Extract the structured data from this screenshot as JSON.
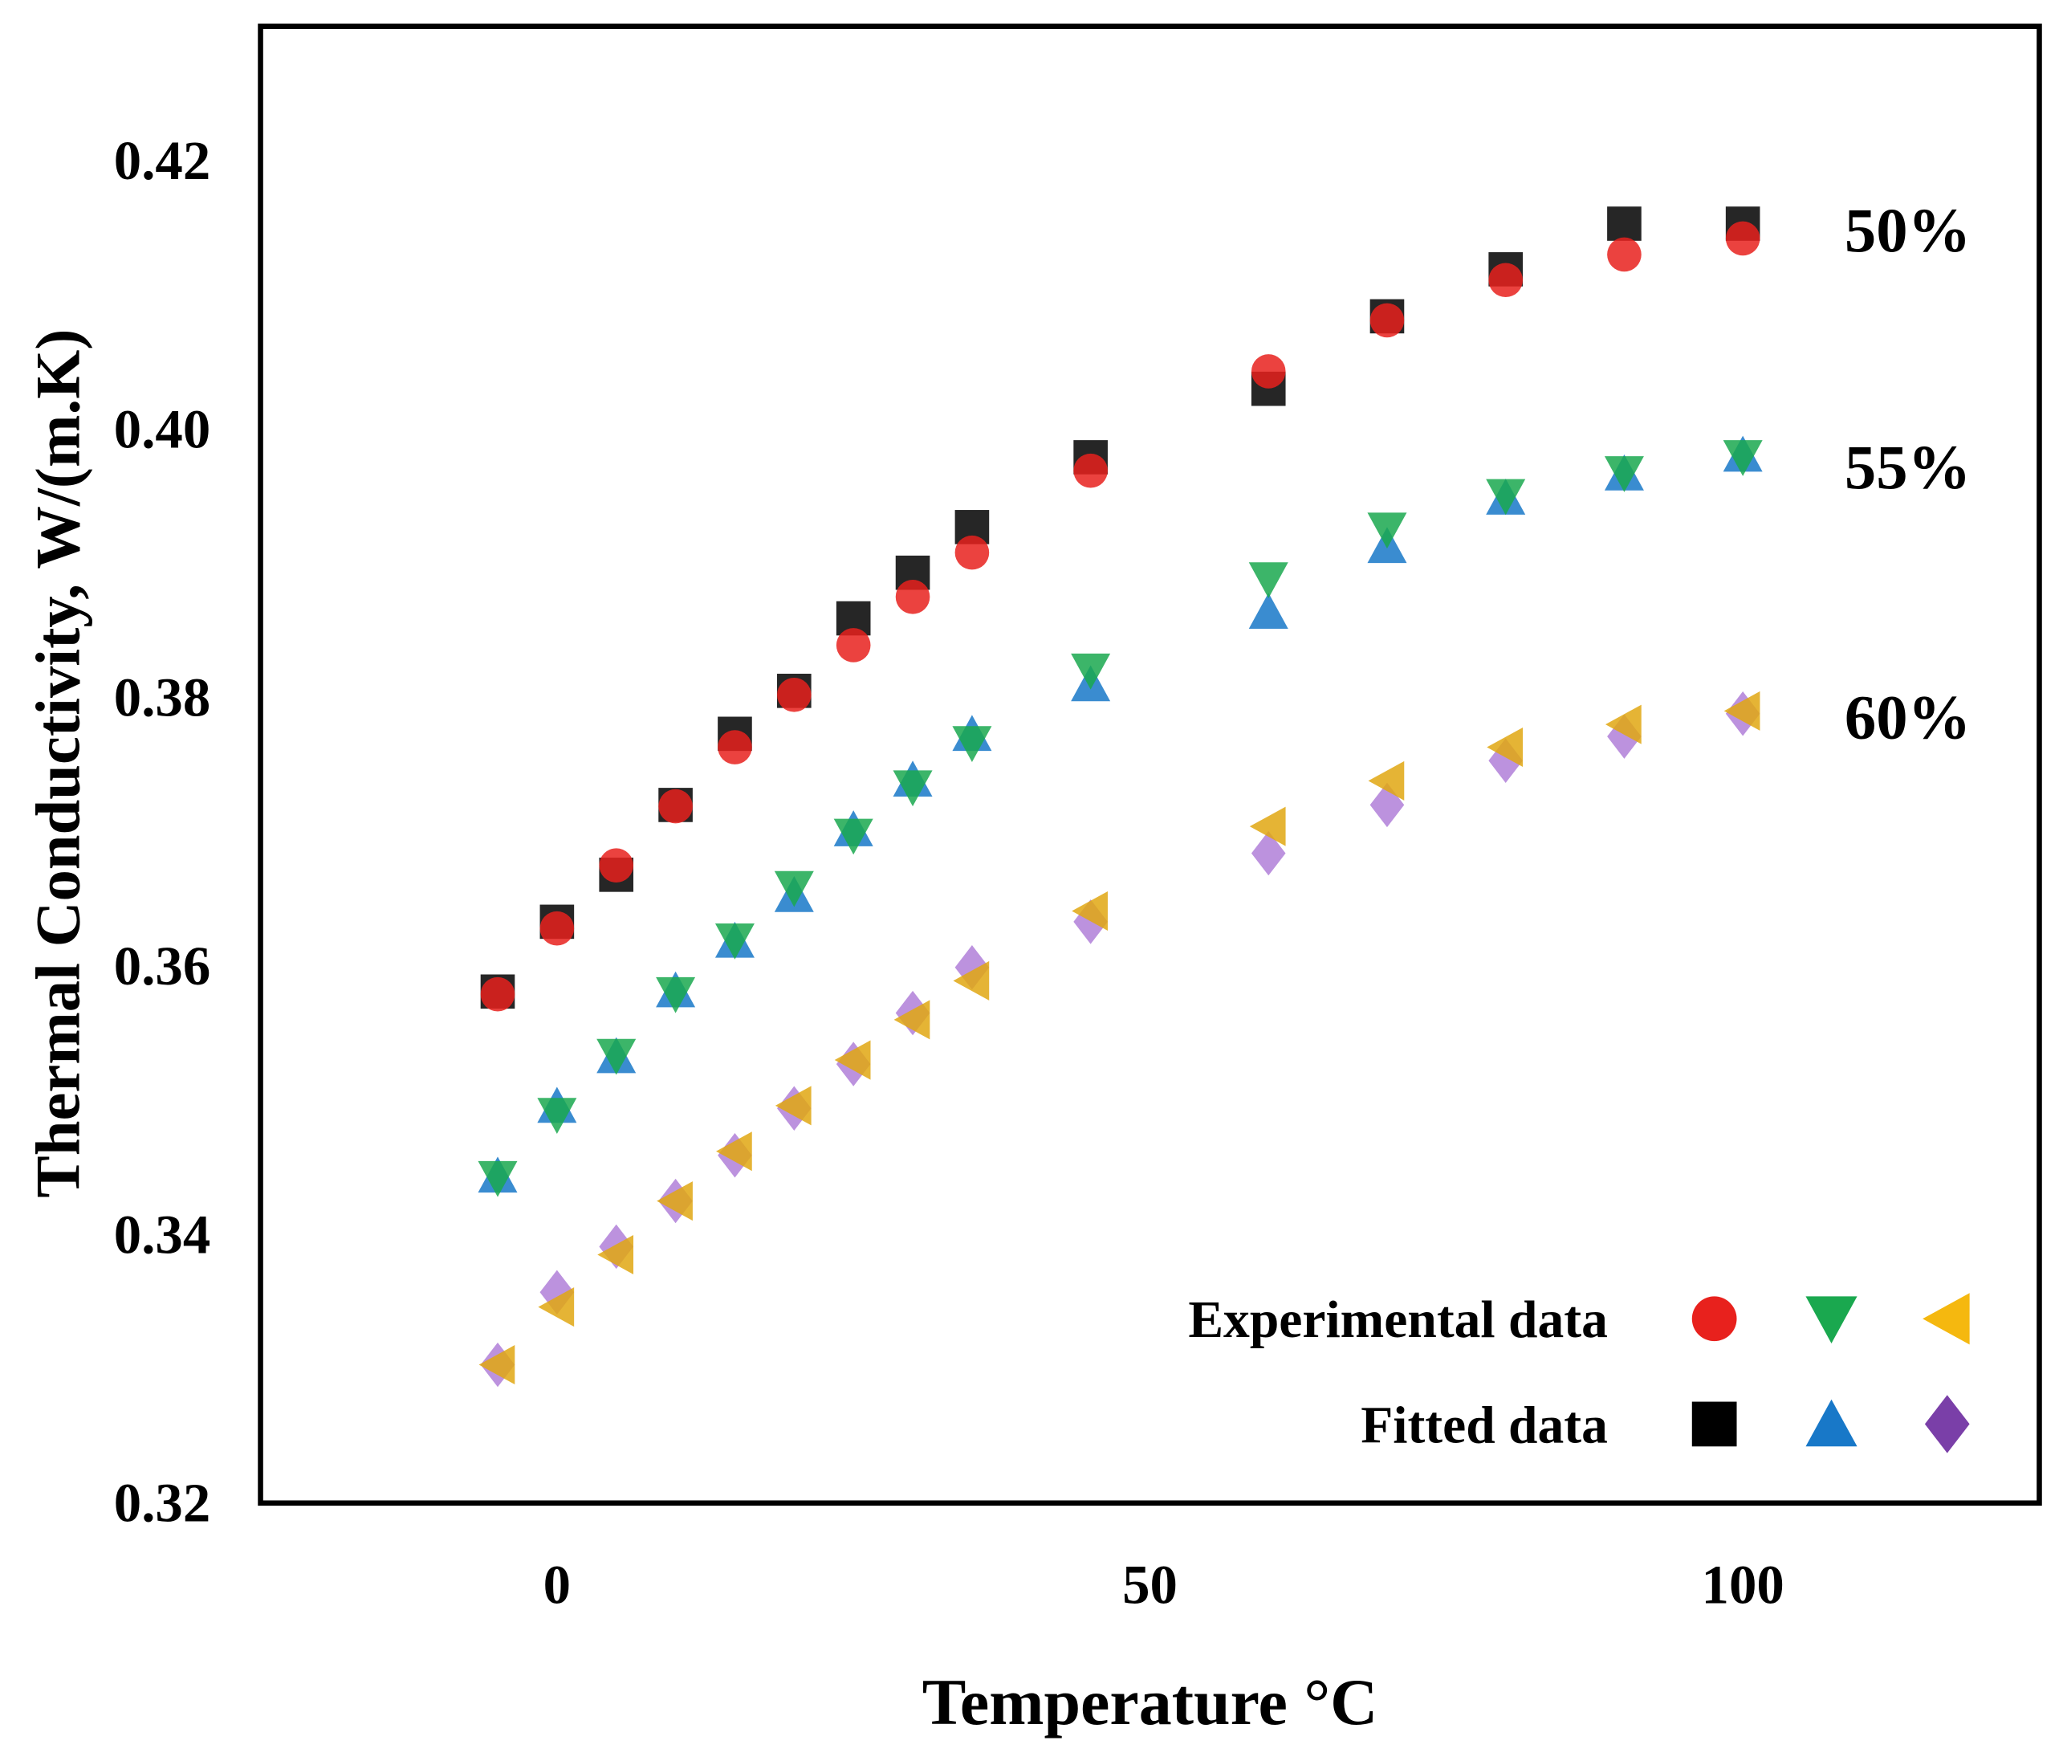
{
  "chart_data": {
    "type": "scatter",
    "title": "",
    "xlabel": "Temperature °C",
    "ylabel": "Thermal Conductivity,  W/(m.K)",
    "xlim": [
      -25,
      125
    ],
    "ylim": [
      0.32,
      0.43
    ],
    "xticks": [
      0,
      50,
      100
    ],
    "xtick_labels": [
      "0",
      "50",
      "100"
    ],
    "yticks": [
      0.32,
      0.34,
      0.36,
      0.38,
      0.4,
      0.42
    ],
    "ytick_labels": [
      "0.32",
      "0.34",
      "0.36",
      "0.38",
      "0.40",
      "0.42"
    ],
    "grid": false,
    "legend_placement": "bottom-right",
    "legend": {
      "rows": [
        {
          "label": "Experimental data",
          "markers": [
            "circle",
            "triangle-down",
            "triangle-left"
          ],
          "colors": [
            "#e8211d",
            "#1aa84f",
            "#f5b80f"
          ]
        },
        {
          "label": "Fitted data",
          "markers": [
            "square",
            "triangle-up",
            "diamond"
          ],
          "colors": [
            "#000000",
            "#1878c8",
            "#7a3fa8"
          ]
        }
      ]
    },
    "annotations": [
      "50%",
      "55%",
      "60%"
    ],
    "x": [
      -5,
      0,
      5,
      10,
      15,
      20,
      25,
      30,
      35,
      45,
      60,
      70,
      80,
      90,
      100
    ],
    "series": [
      {
        "group": "50%",
        "kind": "Experimental data",
        "marker": "circle",
        "color": "#e8211d",
        "values": [
          0.3579,
          0.3628,
          0.3675,
          0.3719,
          0.3763,
          0.3802,
          0.3839,
          0.3875,
          0.3908,
          0.3969,
          0.4043,
          0.4081,
          0.4111,
          0.413,
          0.4142
        ]
      },
      {
        "group": "50%",
        "kind": "Fitted data",
        "marker": "square",
        "color": "#000000",
        "values": [
          0.3581,
          0.3633,
          0.3668,
          0.372,
          0.3773,
          0.3805,
          0.3859,
          0.3893,
          0.3927,
          0.3979,
          0.403,
          0.4084,
          0.4119,
          0.4153,
          0.4153
        ]
      },
      {
        "group": "55%",
        "kind": "Experimental data",
        "marker": "triangle-down",
        "color": "#1aa84f",
        "values": [
          0.3442,
          0.3489,
          0.3533,
          0.3579,
          0.3619,
          0.3658,
          0.3697,
          0.3733,
          0.3766,
          0.382,
          0.3888,
          0.3925,
          0.395,
          0.3967,
          0.3979
        ]
      },
      {
        "group": "55%",
        "kind": "Fitted data",
        "marker": "triangle-up",
        "color": "#1878c8",
        "values": [
          0.3444,
          0.3496,
          0.3533,
          0.3582,
          0.3619,
          0.3653,
          0.3702,
          0.3739,
          0.3773,
          0.381,
          0.3864,
          0.3913,
          0.3949,
          0.3967,
          0.3981
        ]
      },
      {
        "group": "60%",
        "kind": "Experimental data",
        "marker": "triangle-left",
        "color": "#e0a712",
        "values": [
          0.3303,
          0.3346,
          0.3385,
          0.3425,
          0.3462,
          0.3496,
          0.353,
          0.356,
          0.3589,
          0.3641,
          0.3704,
          0.3738,
          0.3763,
          0.378,
          0.379
        ]
      },
      {
        "group": "60%",
        "kind": "Fitted data",
        "marker": "diamond",
        "color": "#b07fd8",
        "values": [
          0.3303,
          0.3357,
          0.3391,
          0.3425,
          0.3459,
          0.3494,
          0.3527,
          0.3565,
          0.3599,
          0.3633,
          0.3684,
          0.372,
          0.3753,
          0.3771,
          0.3788
        ]
      }
    ]
  }
}
